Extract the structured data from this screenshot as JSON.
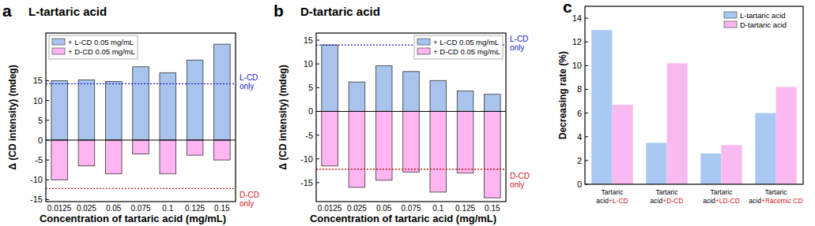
{
  "chart_data": [
    {
      "type": "bar",
      "panel": "a",
      "title": "L-tartaric acid",
      "x_label": "Concentration of tartaric acid (mg/mL)",
      "y_label": "Δ (CD intensity) (mdeg)",
      "categories": [
        "0.0125",
        "0.025",
        "0.05",
        "0.075",
        "0.1",
        "0.125",
        "0.15"
      ],
      "series": [
        {
          "name": "+ L-CD 0.05 mg/mL",
          "color": "#a9c4ec",
          "values": [
            15,
            15.2,
            14.8,
            18.5,
            17,
            20.2,
            24.2
          ]
        },
        {
          "name": "+ D-CD 0.05 mg/mL",
          "color": "#ffb5f1",
          "values": [
            -10,
            -6.5,
            -8.5,
            -3.5,
            -8.5,
            -3.8,
            -5
          ]
        }
      ],
      "annotations": [
        {
          "text": "L-CD only",
          "value": 14.2,
          "color": "#1a1acc"
        },
        {
          "text": "D-CD only",
          "value": -12.2,
          "color": "#cc1a1a"
        }
      ],
      "ylim": [
        -15.5,
        27
      ],
      "yticks": [
        -15,
        -10,
        -5,
        0,
        5,
        10,
        15
      ],
      "stacked": true,
      "legend": "upper left",
      "grid": false
    },
    {
      "type": "bar",
      "panel": "b",
      "title": "D-tartaric acid",
      "x_label": "Concentration of tartaric acid (mg/mL)",
      "y_label": "Δ (CD intensity) (mdeg)",
      "categories": [
        "0.0125",
        "0.025",
        "0.05",
        "0.075",
        "0.1",
        "0.125",
        "0.15"
      ],
      "series": [
        {
          "name": "+ L-CD 0.05 mg/mL",
          "color": "#a9c4ec",
          "values": [
            14,
            6.2,
            9.6,
            8.4,
            6.5,
            4.3,
            3.6
          ]
        },
        {
          "name": "+ D-CD 0.05 mg/mL",
          "color": "#ffb5f1",
          "values": [
            -11.5,
            -16,
            -14.5,
            -12.8,
            -17,
            -13,
            -18.2
          ]
        }
      ],
      "annotations": [
        {
          "text": "L-CD only",
          "value": 14,
          "color": "#1a1acc"
        },
        {
          "text": "D-CD only",
          "value": -12.2,
          "color": "#cc1a1a"
        }
      ],
      "ylim": [
        -19,
        16.5
      ],
      "yticks": [
        -15,
        -10,
        -5,
        0,
        5,
        10,
        15
      ],
      "stacked": true,
      "legend": "upper right",
      "grid": false
    },
    {
      "type": "bar",
      "panel": "c",
      "y_label": "Decreasing rate (%)",
      "categories": [
        "Tartaric acid+L-CD",
        "Tartaric acid+D-CD",
        "Tartaric acid+LD-CD",
        "Tartaric acid+Racemic CD"
      ],
      "series": [
        {
          "name": "L-tartaric acid",
          "color": "#a9c9f2",
          "values": [
            13,
            3.5,
            2.6,
            6
          ]
        },
        {
          "name": "D-tartaric acid",
          "color": "#f9b9f1",
          "values": [
            6.7,
            10.2,
            3.3,
            8.2
          ]
        }
      ],
      "ylim": [
        0,
        15
      ],
      "yticks": [
        0,
        2,
        4,
        6,
        8,
        10,
        12,
        14
      ],
      "stacked": false,
      "legend": "upper right",
      "grid": false
    }
  ]
}
